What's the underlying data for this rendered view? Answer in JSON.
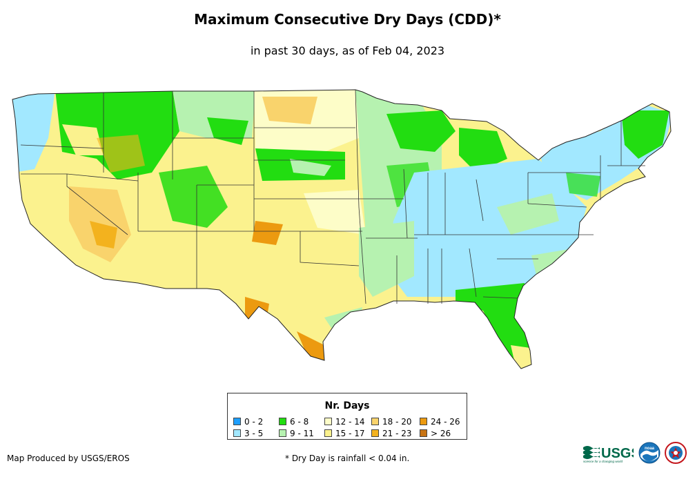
{
  "title": "Maximum Consecutive Dry Days (CDD)*",
  "subtitle": "in past 30 days, as of Feb 04, 2023",
  "legend": {
    "title": "Nr. Days",
    "items": [
      {
        "label": "0 - 2",
        "color": "#1f9fff"
      },
      {
        "label": "3 - 5",
        "color": "#a2e8ff"
      },
      {
        "label": "6 - 8",
        "color": "#22dd11"
      },
      {
        "label": "9 - 11",
        "color": "#b6f2b0"
      },
      {
        "label": "12 - 14",
        "color": "#fdfdc8"
      },
      {
        "label": "15 - 17",
        "color": "#fbf28e"
      },
      {
        "label": "18 - 20",
        "color": "#f9d36c"
      },
      {
        "label": "21 - 23",
        "color": "#f3b21e"
      },
      {
        "label": "24 - 26",
        "color": "#ec9a10"
      },
      {
        "label": "> 26",
        "color": "#c87414"
      }
    ]
  },
  "credit": "Map Produced by USGS/EROS",
  "footnote": "* Dry Day is rainfall < 0.04 in.",
  "logos": {
    "usgs": "USGS",
    "usgs_tagline": "science for a changing world",
    "noaa": "noaa",
    "nws": "NATIONAL WEATHER SERVICE"
  },
  "map": {
    "regions": [
      {
        "name": "pacific-northwest-coast",
        "color": "#a2e8ff"
      },
      {
        "name": "northern-rockies",
        "color": "#22dd11"
      },
      {
        "name": "great-basin",
        "color": "#fbf28e"
      },
      {
        "name": "southwest-desert",
        "color": "#f9d36c"
      },
      {
        "name": "northern-plains",
        "color": "#fdfdc8"
      },
      {
        "name": "southern-plains",
        "color": "#fbf28e"
      },
      {
        "name": "upper-midwest",
        "color": "#b6f2b0"
      },
      {
        "name": "great-lakes",
        "color": "#22dd11"
      },
      {
        "name": "ohio-valley-southeast",
        "color": "#a2e8ff"
      },
      {
        "name": "northeast",
        "color": "#a2e8ff"
      },
      {
        "name": "florida-gulf",
        "color": "#22dd11"
      },
      {
        "name": "south-texas",
        "color": "#ec9a10"
      }
    ]
  }
}
